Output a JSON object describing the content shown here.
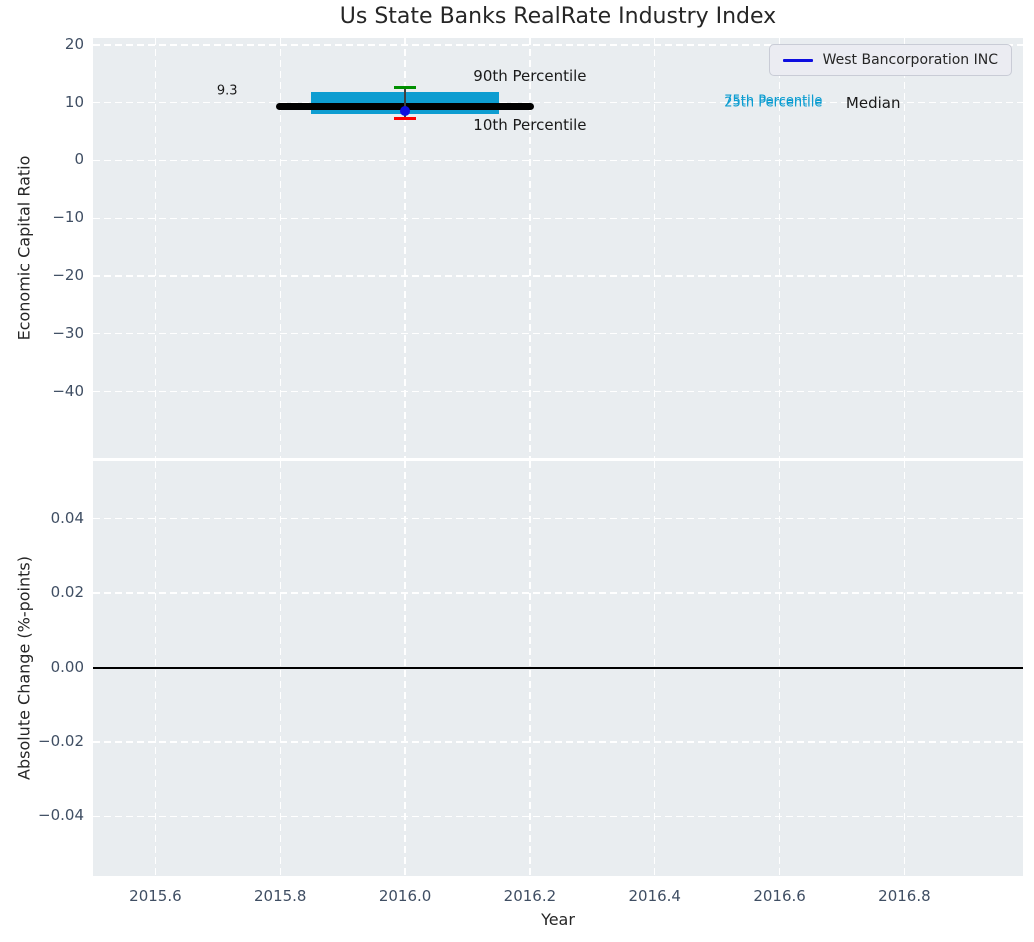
{
  "figure": {
    "title": "Us State Banks RealRate Industry Index",
    "background": "#ffffff",
    "panel_background": "#e9edf0",
    "grid_color": "#ffffff",
    "tick_color": "#3f4e63",
    "text_color": "#262626"
  },
  "legend": {
    "label": "West Bancorporation INC",
    "line_color": "#0d0de0"
  },
  "chart_data": [
    {
      "type": "line",
      "panel": "top",
      "title": "Us State Banks RealRate Industry Index",
      "xlabel": "",
      "ylabel": "Economic Capital Ratio",
      "xlim": [
        2015.5,
        2016.99
      ],
      "ylim": [
        -51.5,
        21.2
      ],
      "grid": true,
      "legend_position": "upper right",
      "xticks": {
        "values": [
          2015.6,
          2015.8,
          2016.0,
          2016.2,
          2016.4,
          2016.6,
          2016.8
        ],
        "labels": [
          "2015.6",
          "2015.8",
          "2016.0",
          "2016.2",
          "2016.4",
          "2016.6",
          "2016.8"
        ],
        "show_labels": false
      },
      "yticks": {
        "values": [
          20,
          10,
          0,
          -10,
          -20,
          -30,
          -40
        ],
        "labels": [
          "20",
          "10",
          "0",
          "−10",
          "−20",
          "−30",
          "−40"
        ]
      },
      "series": [
        {
          "name": "West Bancorporation INC",
          "style": "point",
          "color": "#0d0de0",
          "x": [
            2016.0
          ],
          "y": [
            8.6
          ]
        }
      ],
      "percentiles": {
        "x": 2016.0,
        "p10": 7.3,
        "p25": 8.0,
        "median": 9.3,
        "p75": 11.9,
        "p90": 12.7,
        "median_line": {
          "x_start": 2015.8,
          "x_end": 2016.2,
          "color": "#000000"
        },
        "iqr_box": {
          "x_start": 2015.85,
          "x_end": 2016.15,
          "color": "#0d9dd1"
        },
        "whisker_color": "#3f3f3f",
        "p90_cap_color": "#008f00",
        "p10_cap_color": "#ff0000"
      },
      "annotations": [
        {
          "text": "9.3",
          "x": 2015.715,
          "y": 12.0,
          "color": "#1a1a1a",
          "size": 13
        },
        {
          "text": "90th Percentile",
          "x": 2016.2,
          "y": 14.6,
          "color": "#1a1a1a",
          "size": 15
        },
        {
          "text": "10th Percentile",
          "x": 2016.2,
          "y": 6.2,
          "color": "#1a1a1a",
          "size": 15
        },
        {
          "text": "75th Percentile",
          "x": 2016.59,
          "y": 10.3,
          "color": "#0d9dd1",
          "size": 13
        },
        {
          "text": "25th Percentile",
          "x": 2016.59,
          "y": 9.9,
          "color": "#0d9dd1",
          "size": 13
        },
        {
          "text": "Median",
          "x": 2016.75,
          "y": 9.9,
          "color": "#1a1a1a",
          "size": 15
        }
      ]
    },
    {
      "type": "line",
      "panel": "bottom",
      "xlabel": "Year",
      "ylabel": "Absolute Change (%-points)",
      "xlim": [
        2015.5,
        2016.99
      ],
      "ylim": [
        -0.056,
        0.0555
      ],
      "grid": true,
      "xticks": {
        "values": [
          2015.6,
          2015.8,
          2016.0,
          2016.2,
          2016.4,
          2016.6,
          2016.8
        ],
        "labels": [
          "2015.6",
          "2015.8",
          "2016.0",
          "2016.2",
          "2016.4",
          "2016.6",
          "2016.8"
        ],
        "show_labels": true
      },
      "yticks": {
        "values": [
          0.04,
          0.02,
          0.0,
          -0.02,
          -0.04
        ],
        "labels": [
          "0.04",
          "0.02",
          "0.00",
          "−0.02",
          "−0.04"
        ]
      },
      "zero_line": {
        "y": 0.0,
        "color": "#000000"
      },
      "annotations": []
    }
  ]
}
